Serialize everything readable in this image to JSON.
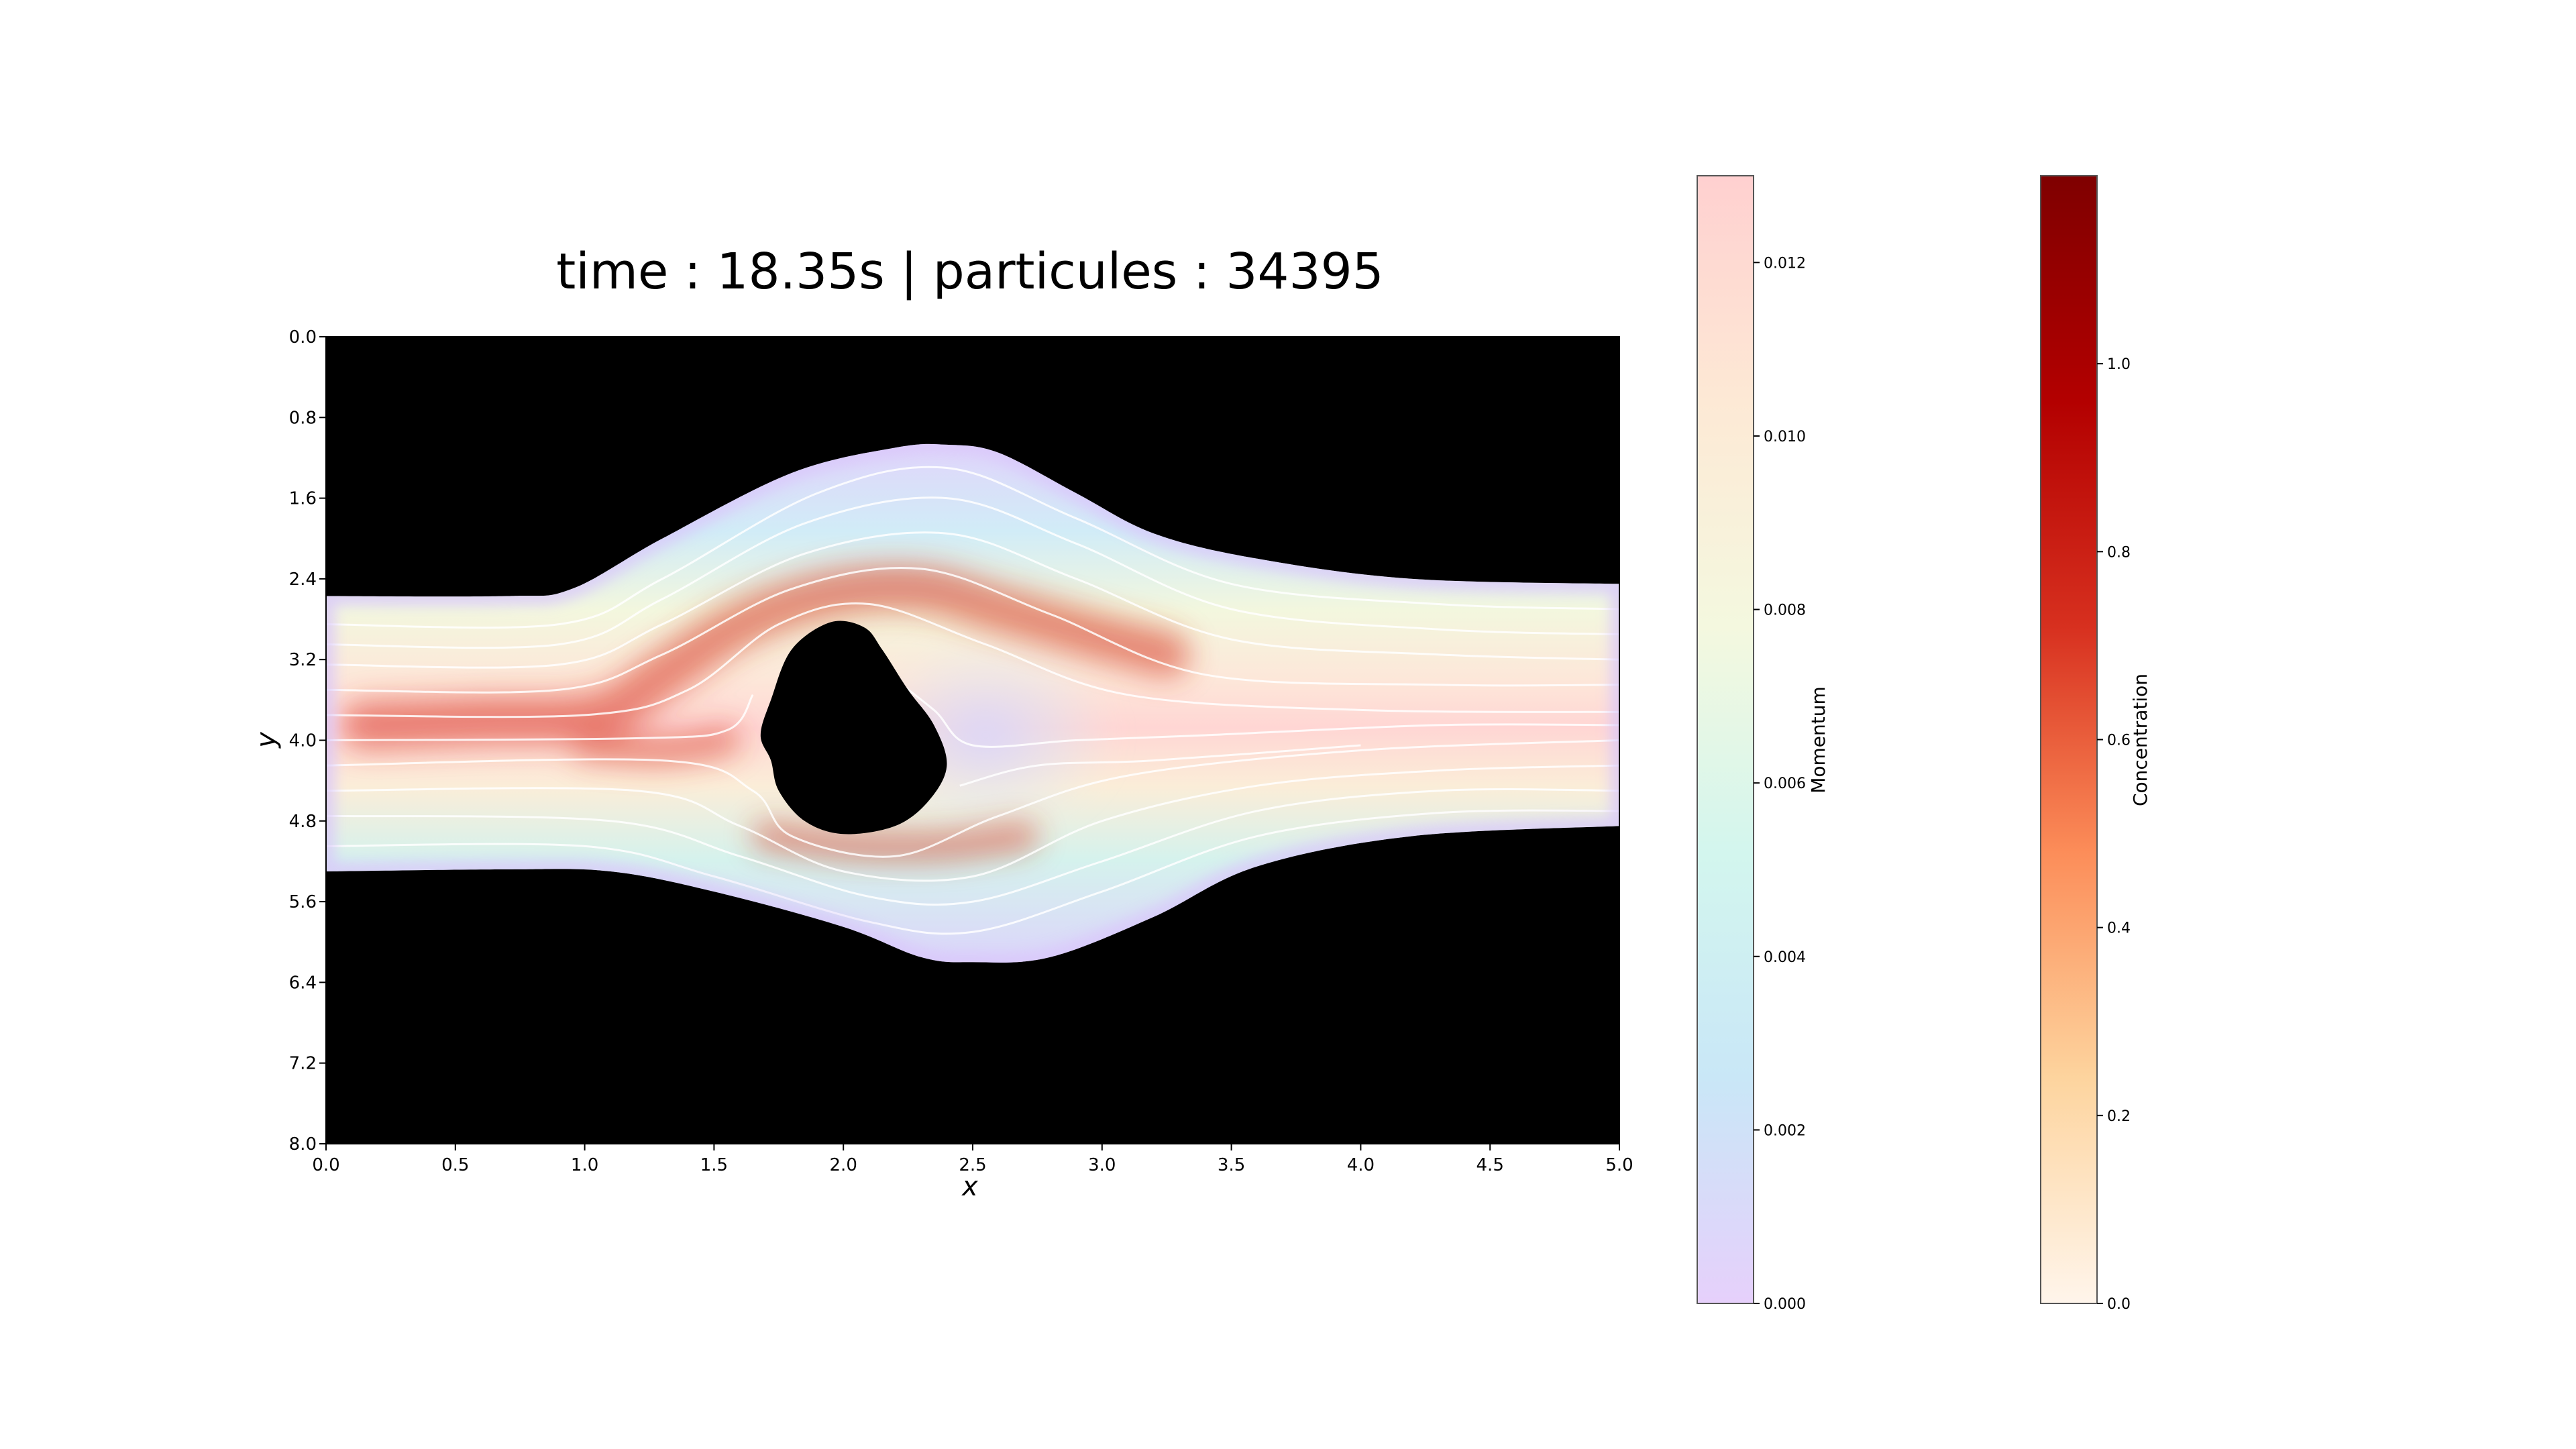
{
  "chart_data": [
    {
      "type": "heatmap",
      "title": "time : 18.35s | particules : 34395",
      "xlabel": "x",
      "ylabel": "y",
      "xlim": [
        0.0,
        5.0
      ],
      "ylim": [
        8.0,
        0.0
      ],
      "x_ticks": [
        "0.0",
        "0.5",
        "1.0",
        "1.5",
        "2.0",
        "2.5",
        "3.0",
        "3.5",
        "4.0",
        "4.5",
        "5.0"
      ],
      "y_ticks": [
        "0.0",
        "0.8",
        "1.6",
        "2.4",
        "3.2",
        "4.0",
        "4.8",
        "5.6",
        "6.4",
        "7.2",
        "8.0"
      ],
      "grid": false,
      "background_color": "#000000",
      "channel": {
        "top_wall": [
          [
            0.0,
            2.57
          ],
          [
            0.7,
            2.57
          ],
          [
            0.95,
            2.5
          ],
          [
            1.3,
            2.0
          ],
          [
            1.8,
            1.35
          ],
          [
            2.2,
            1.1
          ],
          [
            2.4,
            1.07
          ],
          [
            2.6,
            1.15
          ],
          [
            2.9,
            1.55
          ],
          [
            3.2,
            1.95
          ],
          [
            3.6,
            2.2
          ],
          [
            4.2,
            2.4
          ],
          [
            5.0,
            2.45
          ]
        ],
        "bottom_wall": [
          [
            0.0,
            5.3
          ],
          [
            0.7,
            5.28
          ],
          [
            1.1,
            5.3
          ],
          [
            1.5,
            5.5
          ],
          [
            2.0,
            5.85
          ],
          [
            2.3,
            6.15
          ],
          [
            2.5,
            6.2
          ],
          [
            2.8,
            6.15
          ],
          [
            3.2,
            5.75
          ],
          [
            3.6,
            5.25
          ],
          [
            4.2,
            4.95
          ],
          [
            5.0,
            4.85
          ]
        ]
      },
      "obstacle": [
        [
          1.95,
          2.83
        ],
        [
          2.08,
          2.88
        ],
        [
          2.15,
          3.1
        ],
        [
          2.25,
          3.5
        ],
        [
          2.35,
          3.85
        ],
        [
          2.4,
          4.25
        ],
        [
          2.33,
          4.6
        ],
        [
          2.2,
          4.85
        ],
        [
          2.0,
          4.93
        ],
        [
          1.85,
          4.8
        ],
        [
          1.75,
          4.5
        ],
        [
          1.72,
          4.2
        ],
        [
          1.68,
          3.95
        ],
        [
          1.72,
          3.6
        ],
        [
          1.8,
          3.1
        ]
      ],
      "momentum_colorbar": {
        "label": "Momentum",
        "range": [
          0.0,
          0.013
        ],
        "ticks": [
          "0.000",
          "0.002",
          "0.004",
          "0.006",
          "0.008",
          "0.010",
          "0.012"
        ],
        "colors": [
          "#e6d0fb",
          "#c9e7f7",
          "#d3f6ee",
          "#f4f8df",
          "#fde9d5",
          "#ffd0d0"
        ]
      },
      "concentration_colorbar": {
        "label": "Concentration",
        "range": [
          0.0,
          1.2
        ],
        "ticks": [
          "0.0",
          "0.2",
          "0.4",
          "0.6",
          "0.8",
          "1.0"
        ],
        "colors": [
          "#fff5eb",
          "#fdd49e",
          "#fc8d59",
          "#d7301f",
          "#b30000",
          "#7f0000"
        ]
      }
    }
  ]
}
